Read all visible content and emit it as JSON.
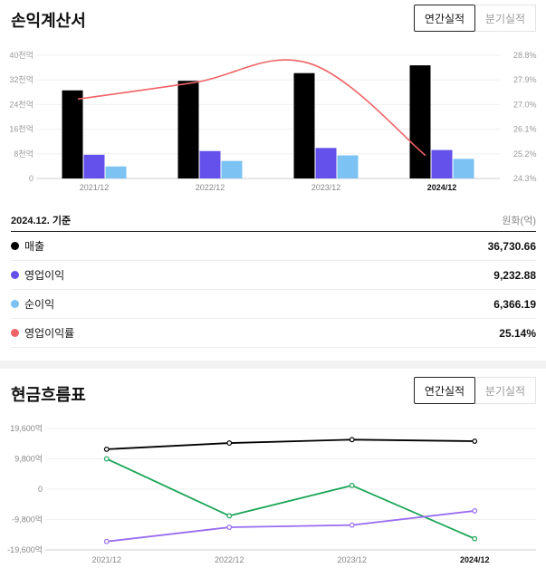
{
  "income": {
    "title": "손익계산서",
    "tabs": [
      "연간실적",
      "분기실적"
    ],
    "basis": "2024.12. 기준",
    "unit": "원화(억)",
    "rows": [
      {
        "label": "매출",
        "value": "36,730.66",
        "color": "#000000"
      },
      {
        "label": "영업이익",
        "value": "9,232.88",
        "color": "#6450ea"
      },
      {
        "label": "순이익",
        "value": "6,366.19",
        "color": "#7cc2f3"
      },
      {
        "label": "영업이익률",
        "value": "25.14%",
        "color": "#ef6366"
      }
    ]
  },
  "cashflow": {
    "title": "현금흐름표",
    "tabs": [
      "연간실적",
      "분기실적"
    ]
  },
  "chart_data": [
    {
      "type": "bar",
      "categories": [
        "2021/12",
        "2022/12",
        "2023/12",
        "2024/12"
      ],
      "highlight_category": "2024/12",
      "series": [
        {
          "key": "revenue",
          "color": "#000000",
          "values": [
            28600,
            31700,
            34200,
            36730.66
          ]
        },
        {
          "key": "operating_profit",
          "color": "#6450ea",
          "values": [
            7700,
            8900,
            9900,
            9232.88
          ]
        },
        {
          "key": "net_profit",
          "color": "#7cc2f3",
          "values": [
            3900,
            5700,
            7500,
            6366.19
          ]
        }
      ],
      "y_ticks": [
        "0",
        "8천억",
        "16천억",
        "24천억",
        "32천억",
        "40천억"
      ],
      "ylim": [
        0,
        40000
      ],
      "line_series": {
        "key": "operating_margin",
        "color": "#ef6366",
        "values": [
          27.2,
          27.8,
          28.5,
          25.14
        ]
      },
      "y2_ticks": [
        "24.3%",
        "25.2%",
        "26.1%",
        "27.0%",
        "27.9%",
        "28.8%"
      ],
      "y2lim": [
        24.3,
        28.8
      ]
    },
    {
      "type": "line",
      "categories": [
        "2021/12",
        "2022/12",
        "2023/12",
        "2024/12"
      ],
      "highlight_category": "2024/12",
      "series": [
        {
          "key": "series_black",
          "color": "#000000",
          "values": [
            12900,
            14900,
            16000,
            15500
          ]
        },
        {
          "key": "series_green",
          "color": "#1aa556",
          "values": [
            9800,
            -8600,
            1200,
            -16000
          ]
        },
        {
          "key": "series_purple",
          "color": "#9a6cf0",
          "values": [
            -16900,
            -12300,
            -11600,
            -7000
          ]
        }
      ],
      "y_ticks": [
        "-19,600억",
        "-9,800억",
        "0",
        "9,800억",
        "19,600억"
      ],
      "ylim": [
        -19600,
        19600
      ]
    }
  ]
}
